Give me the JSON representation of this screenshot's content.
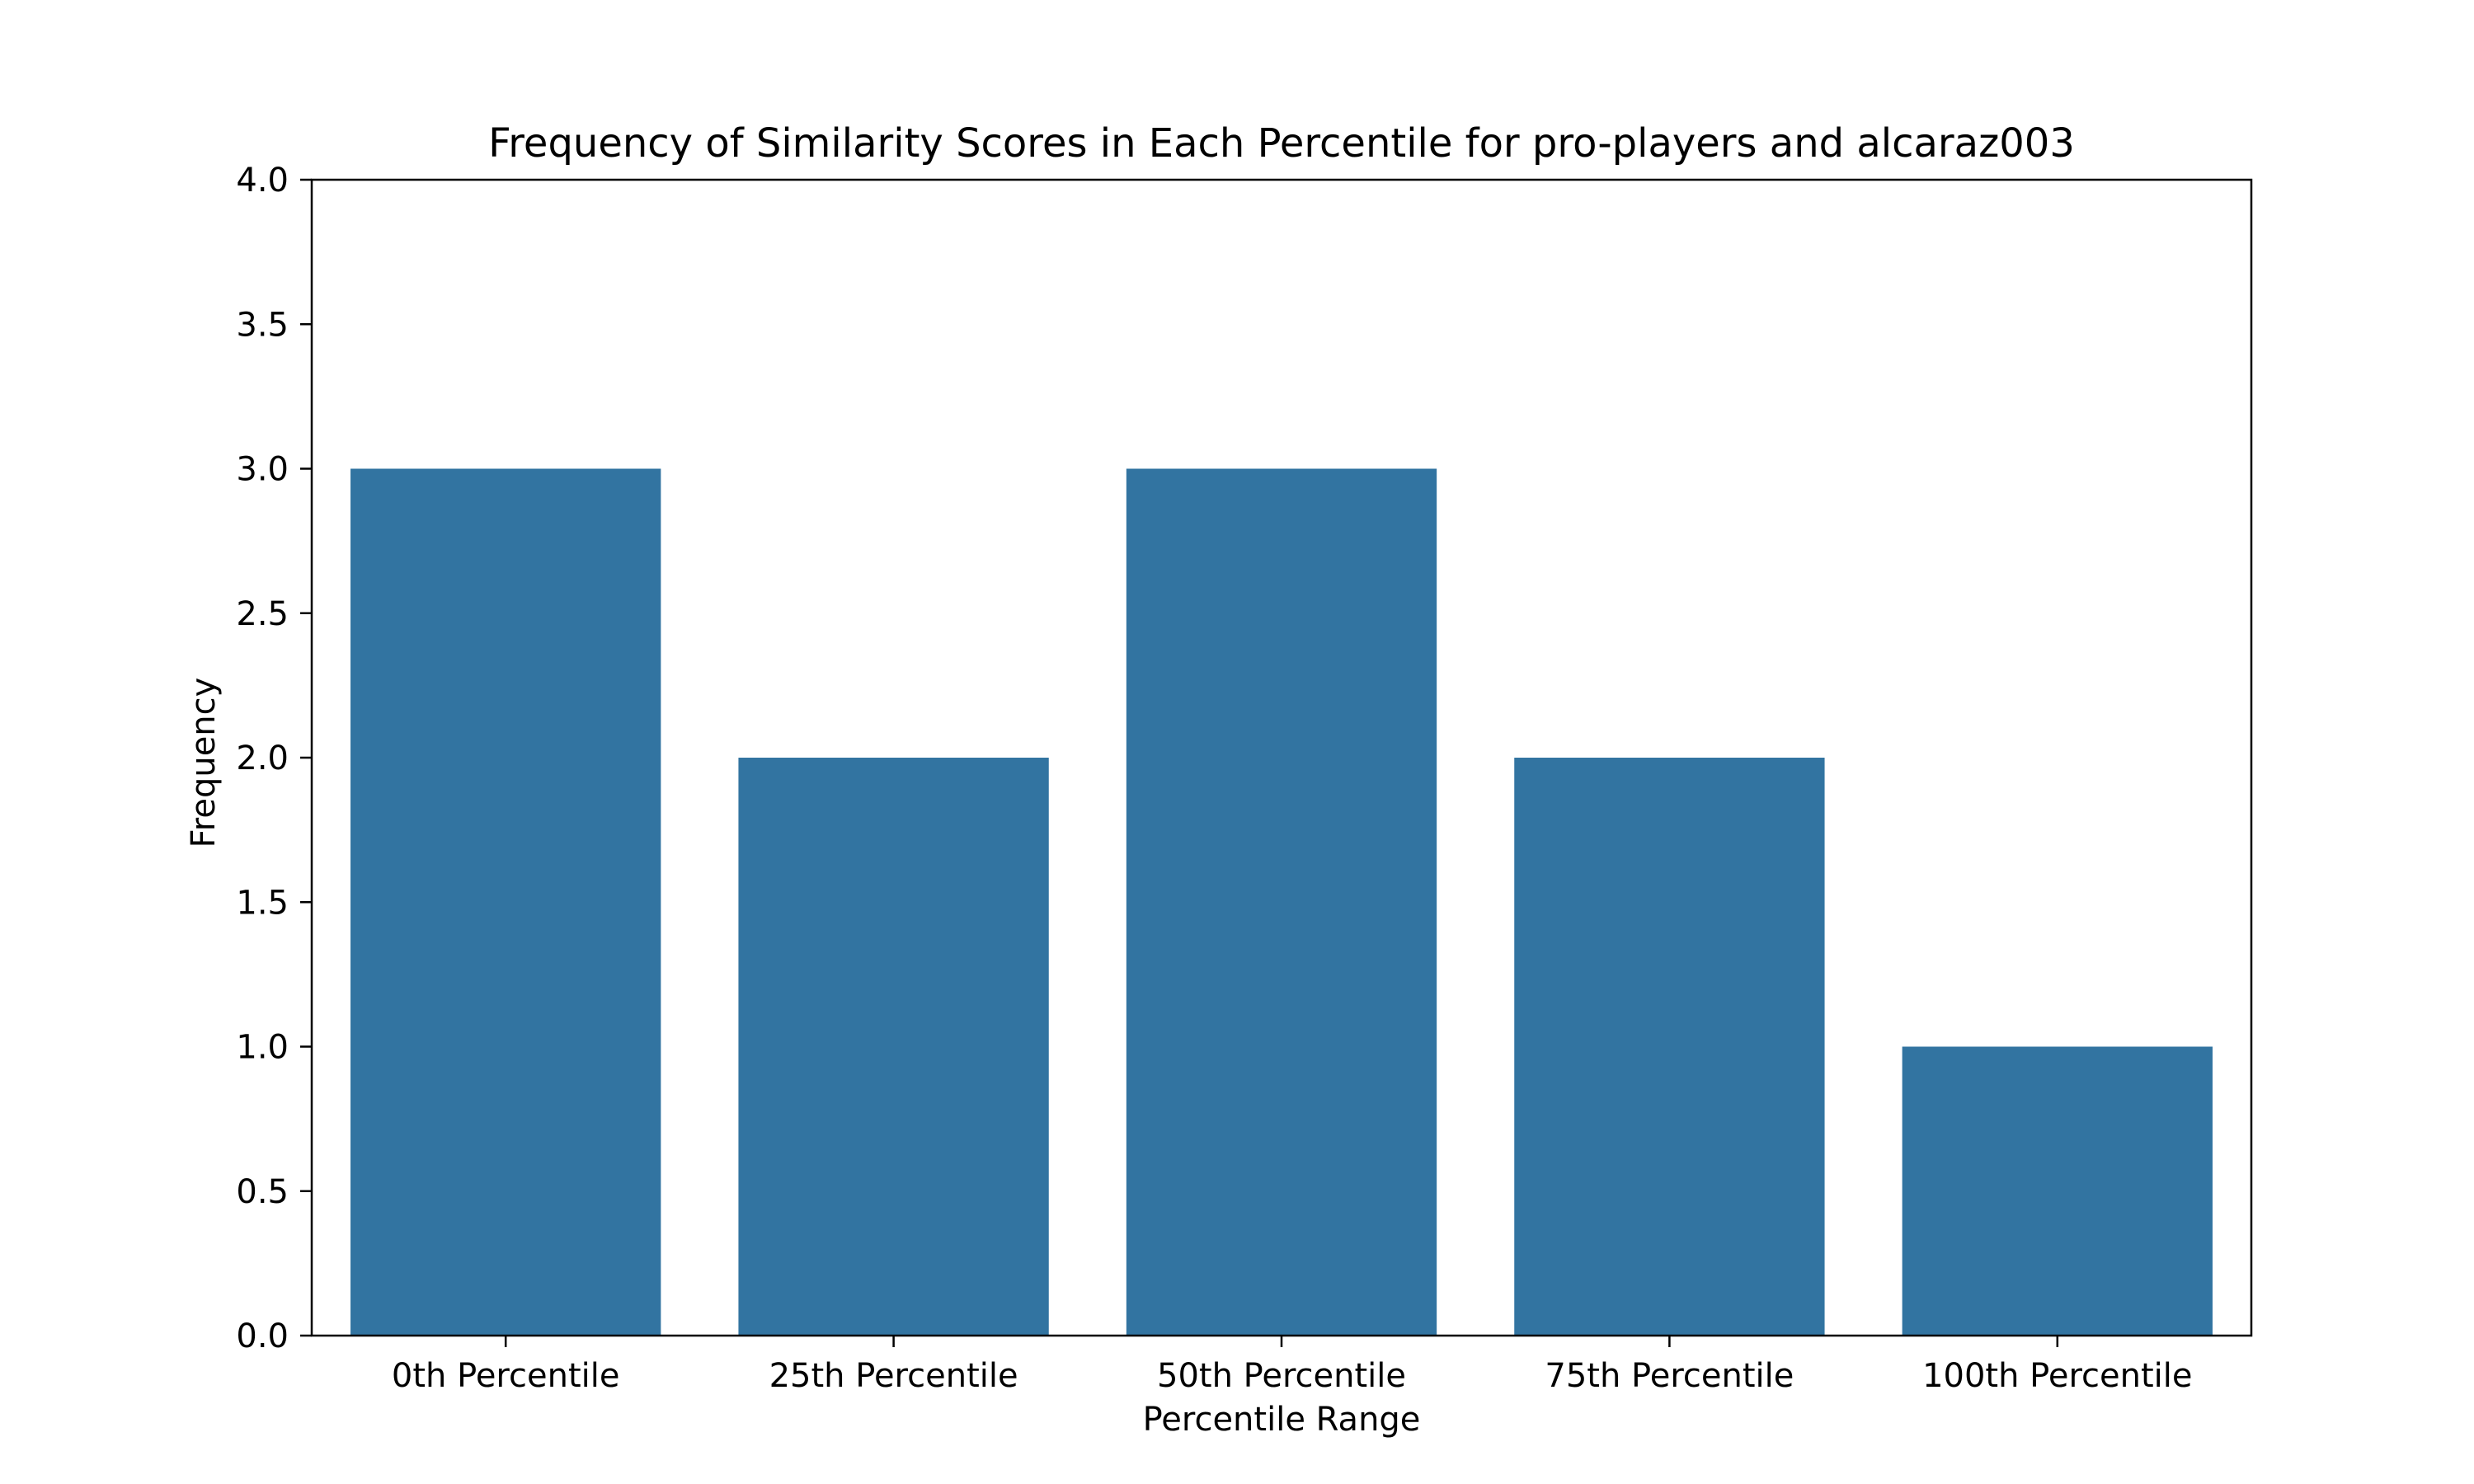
{
  "chart_data": {
    "type": "bar",
    "title": "Frequency of Similarity Scores in Each Percentile for pro-players and alcaraz003",
    "xlabel": "Percentile Range",
    "ylabel": "Frequency",
    "categories": [
      "0th Percentile",
      "25th Percentile",
      "50th Percentile",
      "75th Percentile",
      "100th Percentile"
    ],
    "values": [
      3,
      2,
      3,
      2,
      1
    ],
    "ylim": [
      0,
      4
    ],
    "yticks": [
      0.0,
      0.5,
      1.0,
      1.5,
      2.0,
      2.5,
      3.0,
      3.5,
      4.0
    ],
    "ytick_labels": [
      "0.0",
      "0.5",
      "1.0",
      "1.5",
      "2.0",
      "2.5",
      "3.0",
      "3.5",
      "4.0"
    ],
    "grid": false,
    "legend": "none",
    "bar_color": "#3274a1"
  }
}
